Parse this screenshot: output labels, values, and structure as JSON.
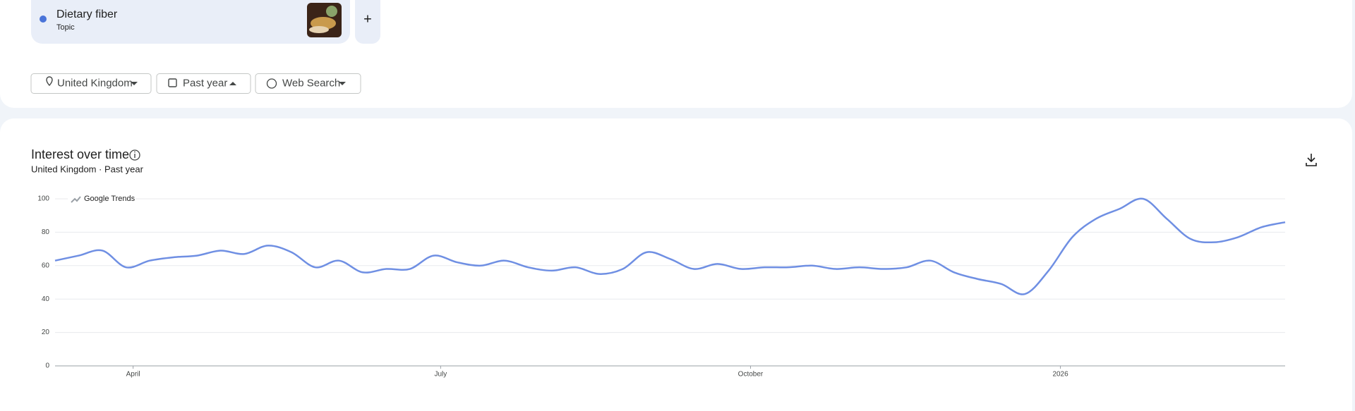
{
  "search": {
    "term": "Dietary fiber",
    "term_type": "Topic",
    "add": "+"
  },
  "filters": {
    "region": "United Kingdom",
    "period": "Past year",
    "property": "Web Search"
  },
  "panel": {
    "title": "Interest over time",
    "subtitle_region": "United Kingdom",
    "separator": "·",
    "subtitle_period": "Past year"
  },
  "chart_data": {
    "type": "line",
    "watermark": "Google Trends",
    "color": "#6f8fe3",
    "values": [
      63,
      66,
      69,
      59,
      63,
      65,
      66,
      69,
      67,
      72,
      68,
      59,
      63,
      56,
      58,
      58,
      66,
      62,
      60,
      63,
      59,
      57,
      59,
      55,
      58,
      68,
      64,
      58,
      61,
      58,
      59,
      59,
      60,
      58,
      59,
      58,
      59,
      63,
      56,
      52,
      49,
      43,
      57,
      77,
      88,
      94,
      100,
      88,
      76,
      74,
      77,
      83,
      86
    ],
    "xlim": [
      0,
      52
    ],
    "xticks": [
      {
        "value": 3.3,
        "label": "April"
      },
      {
        "value": 16.3,
        "label": "July"
      },
      {
        "value": 29.4,
        "label": "October"
      },
      {
        "value": 42.5,
        "label": "2026"
      }
    ],
    "ylim": [
      0,
      100
    ],
    "yticks": [
      0,
      20,
      40,
      60,
      80,
      100
    ],
    "grid": true
  }
}
